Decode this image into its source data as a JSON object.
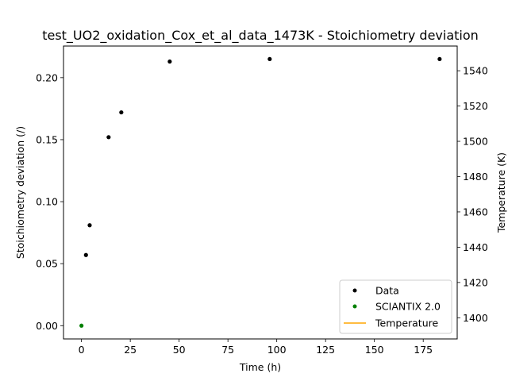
{
  "chart_data": {
    "type": "scatter",
    "title": "test_UO2_oxidation_Cox_et_al_data_1473K - Stoichiometry deviation",
    "xlabel": "Time (h)",
    "ylabel": "Stoichiometry deviation (/)",
    "y2label": "Temperature (K)",
    "xlim": [
      -9.2,
      192.4
    ],
    "ylim": [
      -0.0107,
      0.2255
    ],
    "y2lim": [
      1388,
      1554
    ],
    "x_ticks": [
      0,
      25,
      50,
      75,
      100,
      125,
      150,
      175
    ],
    "y_ticks": [
      0.0,
      0.05,
      0.1,
      0.15,
      0.2
    ],
    "y2_ticks": [
      1400,
      1420,
      1440,
      1460,
      1480,
      1500,
      1520,
      1540
    ],
    "legend_position": "lower-right",
    "series": [
      {
        "name": "Data",
        "axis": "left",
        "style": "markers",
        "color": "#000000",
        "x": [
          2.3,
          4.2,
          13.9,
          20.4,
          45.2,
          96.4,
          183.4
        ],
        "y": [
          0.057,
          0.081,
          0.152,
          0.172,
          0.213,
          0.215,
          0.215
        ]
      },
      {
        "name": "SCIANTIX 2.0",
        "axis": "left",
        "style": "markers",
        "color": "#008000",
        "x": [
          0
        ],
        "y": [
          0.0
        ]
      },
      {
        "name": "Temperature",
        "axis": "right",
        "style": "line",
        "color": "#ffa500",
        "x": [],
        "y": []
      }
    ]
  }
}
